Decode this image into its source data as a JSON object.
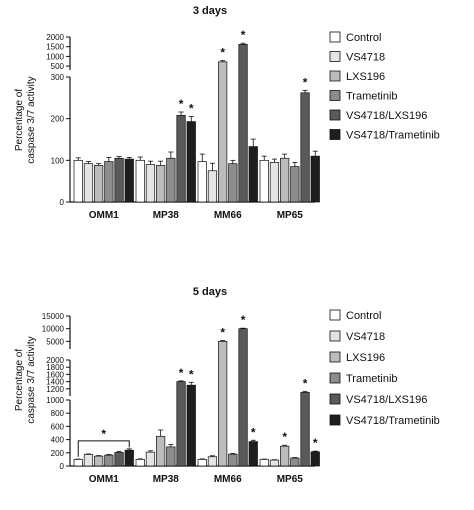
{
  "legend_colors": [
    "#ffffff",
    "#e4e4e4",
    "#bcbcbc",
    "#8c8c8c",
    "#5a5a5a",
    "#1e1e1e"
  ],
  "chart_data": [
    {
      "type": "bar",
      "title": "3 days",
      "ylabel": "Percentage of caspase 3/7 activity",
      "categories": [
        "OMM1",
        "MP38",
        "MM66",
        "MP65"
      ],
      "y_axis": "broken",
      "y_segments": [
        {
          "range": [
            0,
            300
          ],
          "ticks": [
            0,
            100,
            200,
            300
          ]
        },
        {
          "range": [
            300,
            2000
          ],
          "ticks": [
            500,
            1000,
            1500,
            2000
          ]
        }
      ],
      "series": [
        {
          "name": "Control",
          "values": [
            100,
            100,
            97,
            100
          ],
          "errors": [
            6,
            8,
            18,
            10
          ]
        },
        {
          "name": "VS4718",
          "values": [
            92,
            90,
            75,
            95
          ],
          "errors": [
            5,
            8,
            18,
            8
          ]
        },
        {
          "name": "LXS196",
          "values": [
            88,
            88,
            720,
            105
          ],
          "errors": [
            4,
            10,
            60,
            10
          ]
        },
        {
          "name": "Trametinib",
          "values": [
            97,
            105,
            92,
            85
          ],
          "errors": [
            10,
            15,
            8,
            10
          ]
        },
        {
          "name": "VS4718/LXS196",
          "values": [
            105,
            208,
            1620,
            262
          ],
          "errors": [
            4,
            8,
            60,
            6
          ]
        },
        {
          "name": "VS4718/Trametinib",
          "values": [
            103,
            193,
            133,
            110
          ],
          "errors": [
            4,
            12,
            18,
            12
          ]
        }
      ],
      "significance": [
        {
          "category": "MP38",
          "series": "VS4718/LXS196"
        },
        {
          "category": "MP38",
          "series": "VS4718/Trametinib"
        },
        {
          "category": "MM66",
          "series": "LXS196"
        },
        {
          "category": "MM66",
          "series": "VS4718/LXS196"
        },
        {
          "category": "MP65",
          "series": "VS4718/LXS196"
        }
      ]
    },
    {
      "type": "bar",
      "title": "5 days",
      "ylabel": "Percentage of caspase 3/7 activity",
      "categories": [
        "OMM1",
        "MP38",
        "MM66",
        "MP65"
      ],
      "y_axis": "broken",
      "y_segments": [
        {
          "range": [
            0,
            1000
          ],
          "ticks": [
            0,
            200,
            400,
            600,
            800,
            1000
          ]
        },
        {
          "range": [
            1000,
            2000
          ],
          "ticks": [
            1200,
            1400,
            1600,
            1800,
            2000
          ]
        },
        {
          "range": [
            2000,
            15000
          ],
          "ticks": [
            5000,
            10000,
            15000
          ]
        }
      ],
      "series": [
        {
          "name": "Control",
          "values": [
            100,
            100,
            100,
            100
          ],
          "errors": [
            5,
            8,
            8,
            5
          ]
        },
        {
          "name": "VS4718",
          "values": [
            175,
            210,
            140,
            90
          ],
          "errors": [
            8,
            20,
            15,
            5
          ]
        },
        {
          "name": "LXS196",
          "values": [
            150,
            450,
            5000,
            300
          ],
          "errors": [
            8,
            95,
            300,
            15
          ]
        },
        {
          "name": "Trametinib",
          "values": [
            165,
            290,
            180,
            120
          ],
          "errors": [
            10,
            35,
            10,
            8
          ]
        },
        {
          "name": "VS4718/LXS196",
          "values": [
            205,
            1400,
            10000,
            1100
          ],
          "errors": [
            15,
            20,
            200,
            30
          ]
        },
        {
          "name": "VS4718/Trametinib",
          "values": [
            240,
            1300,
            370,
            215
          ],
          "errors": [
            20,
            80,
            20,
            10
          ]
        }
      ],
      "significance": [
        {
          "category": "MP38",
          "series": "VS4718/LXS196"
        },
        {
          "category": "MP38",
          "series": "VS4718/Trametinib"
        },
        {
          "category": "MM66",
          "series": "LXS196"
        },
        {
          "category": "MM66",
          "series": "VS4718/LXS196"
        },
        {
          "category": "MM66",
          "series": "VS4718/Trametinib"
        },
        {
          "category": "MP65",
          "series": "LXS196"
        },
        {
          "category": "MP65",
          "series": "VS4718/LXS196"
        },
        {
          "category": "MP65",
          "series": "VS4718/Trametinib"
        }
      ],
      "bracket": {
        "category": "OMM1",
        "label": "*"
      }
    }
  ]
}
